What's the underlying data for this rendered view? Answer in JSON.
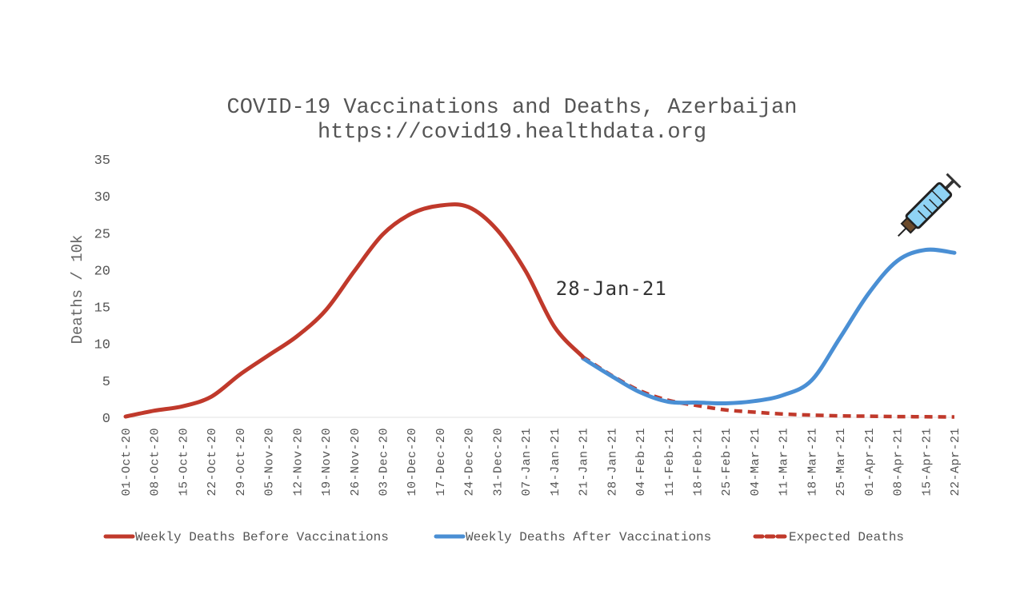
{
  "chart_data": {
    "type": "line",
    "title": "COVID-19 Vaccinations and Deaths, Azerbaijan",
    "subtitle": "https://covid19.healthdata.org",
    "xlabel": "",
    "ylabel": "Deaths / 10k",
    "ylim": [
      0,
      35
    ],
    "yticks": [
      0,
      5,
      10,
      15,
      20,
      25,
      30,
      35
    ],
    "grid": false,
    "legend_position": "bottom",
    "categories": [
      "01-Oct-20",
      "08-Oct-20",
      "15-Oct-20",
      "22-Oct-20",
      "29-Oct-20",
      "05-Nov-20",
      "12-Nov-20",
      "19-Nov-20",
      "26-Nov-20",
      "03-Dec-20",
      "10-Dec-20",
      "17-Dec-20",
      "24-Dec-20",
      "31-Dec-20",
      "07-Jan-21",
      "14-Jan-21",
      "21-Jan-21",
      "28-Jan-21",
      "04-Feb-21",
      "11-Feb-21",
      "18-Feb-21",
      "25-Feb-21",
      "04-Mar-21",
      "11-Mar-21",
      "18-Mar-21",
      "25-Mar-21",
      "01-Apr-21",
      "08-Apr-21",
      "15-Apr-21",
      "22-Apr-21"
    ],
    "series": [
      {
        "name": "Weekly Deaths Before Vaccinations",
        "color": "#c0392b",
        "style": "solid",
        "values": [
          0.1,
          0.9,
          1.5,
          2.8,
          5.8,
          8.4,
          11.0,
          14.5,
          19.8,
          24.8,
          27.6,
          28.7,
          28.5,
          25.4,
          19.8,
          12.3,
          8.2,
          null,
          null,
          null,
          null,
          null,
          null,
          null,
          null,
          null,
          null,
          null,
          null,
          null
        ]
      },
      {
        "name": "Weekly Deaths After Vaccinations",
        "color": "#4a8fd4",
        "style": "solid",
        "values": [
          null,
          null,
          null,
          null,
          null,
          null,
          null,
          null,
          null,
          null,
          null,
          null,
          null,
          null,
          null,
          null,
          8.0,
          5.6,
          3.4,
          2.1,
          2.0,
          1.9,
          2.2,
          3.0,
          5.0,
          10.8,
          16.8,
          21.2,
          22.7,
          22.3
        ]
      },
      {
        "name": "Expected Deaths",
        "color": "#c0392b",
        "style": "dashed",
        "values": [
          null,
          null,
          null,
          null,
          null,
          null,
          null,
          null,
          null,
          null,
          null,
          null,
          null,
          null,
          null,
          null,
          8.2,
          5.7,
          3.6,
          2.3,
          1.6,
          1.0,
          0.7,
          0.45,
          0.3,
          0.2,
          0.15,
          0.1,
          0.08,
          0.05
        ]
      }
    ],
    "annotations": [
      {
        "text": "28-Jan-21",
        "category": "28-Jan-21",
        "y": 16.6
      }
    ],
    "icon": "syringe-icon"
  }
}
